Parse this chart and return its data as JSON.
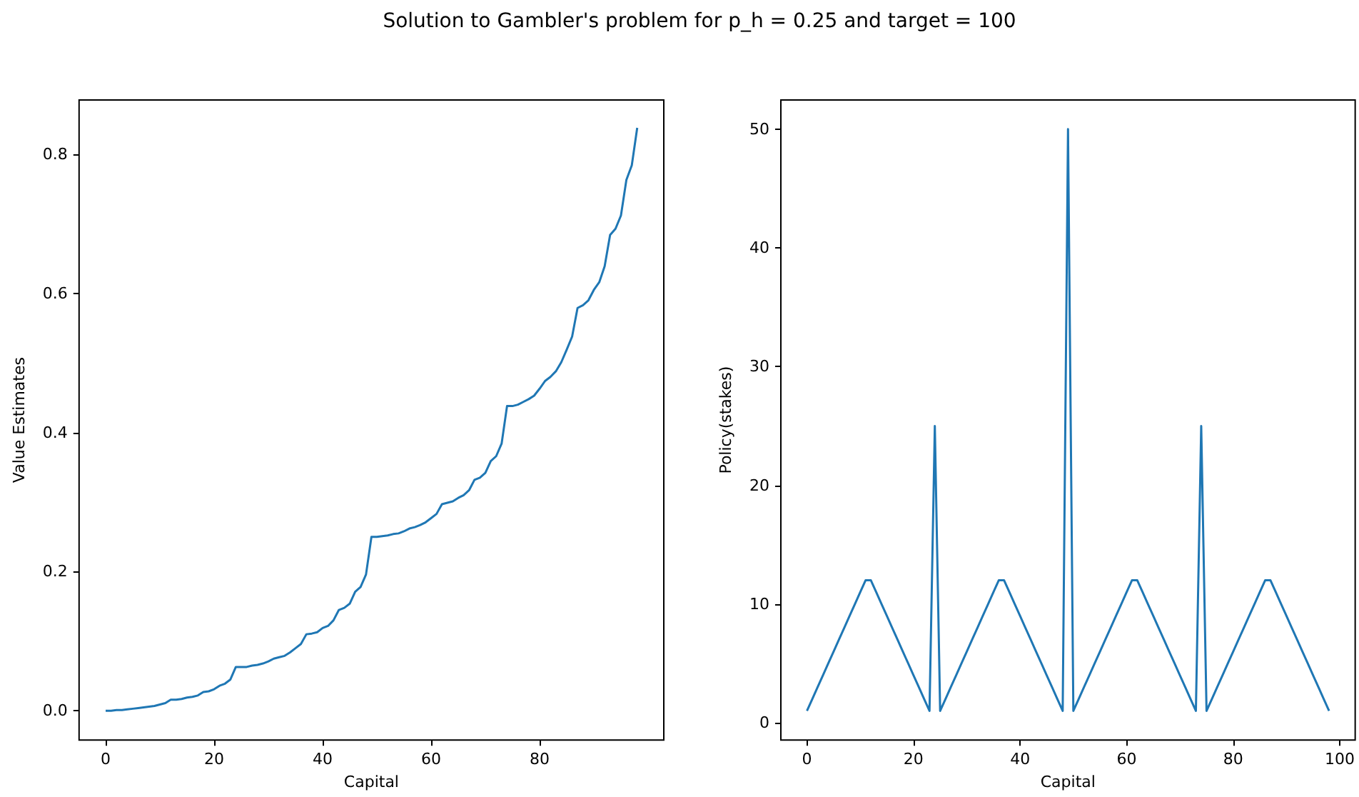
{
  "chart_data": [
    {
      "type": "line",
      "title": "Solution to Gambler's problem for p_h = 0.25 and target = 100",
      "xlabel": "Capital",
      "ylabel": "Value Estimates",
      "x": [
        0,
        1,
        2,
        3,
        4,
        5,
        6,
        7,
        8,
        9,
        10,
        11,
        12,
        13,
        14,
        15,
        16,
        17,
        18,
        19,
        20,
        21,
        22,
        23,
        24,
        25,
        26,
        27,
        28,
        29,
        30,
        31,
        32,
        33,
        34,
        35,
        36,
        37,
        38,
        39,
        40,
        41,
        42,
        43,
        44,
        45,
        46,
        47,
        48,
        49,
        50,
        51,
        52,
        53,
        54,
        55,
        56,
        57,
        58,
        59,
        60,
        61,
        62,
        63,
        64,
        65,
        66,
        67,
        68,
        69,
        70,
        71,
        72,
        73,
        74,
        75,
        76,
        77,
        78,
        79,
        80,
        81,
        82,
        83,
        84,
        85,
        86,
        87,
        88,
        89,
        90,
        91,
        92,
        93,
        94,
        95,
        96,
        97,
        98
      ],
      "series": [
        {
          "color": "#1f77b4",
          "values": [
            0.0,
            0.0,
            0.001,
            0.001,
            0.002,
            0.003,
            0.004,
            0.005,
            0.006,
            0.007,
            0.009,
            0.011,
            0.016,
            0.016,
            0.017,
            0.019,
            0.02,
            0.022,
            0.027,
            0.028,
            0.031,
            0.036,
            0.039,
            0.045,
            0.063,
            0.063,
            0.063,
            0.065,
            0.066,
            0.068,
            0.071,
            0.075,
            0.077,
            0.079,
            0.084,
            0.09,
            0.096,
            0.11,
            0.111,
            0.113,
            0.119,
            0.122,
            0.13,
            0.145,
            0.148,
            0.154,
            0.171,
            0.178,
            0.196,
            0.25,
            0.25,
            0.251,
            0.252,
            0.254,
            0.255,
            0.258,
            0.262,
            0.264,
            0.267,
            0.271,
            0.277,
            0.283,
            0.297,
            0.299,
            0.301,
            0.306,
            0.31,
            0.317,
            0.332,
            0.335,
            0.342,
            0.359,
            0.366,
            0.384,
            0.438,
            0.438,
            0.44,
            0.444,
            0.448,
            0.453,
            0.463,
            0.474,
            0.48,
            0.488,
            0.501,
            0.519,
            0.538,
            0.579,
            0.583,
            0.59,
            0.605,
            0.616,
            0.639,
            0.684,
            0.693,
            0.712,
            0.763,
            0.784,
            0.838
          ]
        }
      ],
      "xlim": [
        -4.9,
        102.9
      ],
      "xticks": [
        0,
        20,
        40,
        60,
        80
      ],
      "ylim": [
        -0.042,
        0.878
      ],
      "yticks": [
        {
          "value": 0,
          "label": "0.0"
        },
        {
          "value": 0.2,
          "label": "0.2"
        },
        {
          "value": 0.4,
          "label": "0.4"
        },
        {
          "value": 0.6,
          "label": "0.6"
        },
        {
          "value": 0.8,
          "label": "0.8"
        }
      ],
      "grid": false
    },
    {
      "type": "line",
      "xlabel": "Capital",
      "ylabel": "Policy(stakes)",
      "x": [
        0,
        1,
        2,
        3,
        4,
        5,
        6,
        7,
        8,
        9,
        10,
        11,
        12,
        13,
        14,
        15,
        16,
        17,
        18,
        19,
        20,
        21,
        22,
        23,
        24,
        25,
        26,
        27,
        28,
        29,
        30,
        31,
        32,
        33,
        34,
        35,
        36,
        37,
        38,
        39,
        40,
        41,
        42,
        43,
        44,
        45,
        46,
        47,
        48,
        49,
        50,
        51,
        52,
        53,
        54,
        55,
        56,
        57,
        58,
        59,
        60,
        61,
        62,
        63,
        64,
        65,
        66,
        67,
        68,
        69,
        70,
        71,
        72,
        73,
        74,
        75,
        76,
        77,
        78,
        79,
        80,
        81,
        82,
        83,
        84,
        85,
        86,
        87,
        88,
        89,
        90,
        91,
        92,
        93,
        94,
        95,
        96,
        97,
        98
      ],
      "series": [
        {
          "color": "#1f77b4",
          "values": [
            1,
            2,
            3,
            4,
            5,
            6,
            7,
            8,
            9,
            10,
            11,
            12,
            12,
            11,
            10,
            9,
            8,
            7,
            6,
            5,
            4,
            3,
            2,
            1,
            25,
            1,
            2,
            3,
            4,
            5,
            6,
            7,
            8,
            9,
            10,
            11,
            12,
            12,
            11,
            10,
            9,
            8,
            7,
            6,
            5,
            4,
            3,
            2,
            1,
            50,
            1,
            2,
            3,
            4,
            5,
            6,
            7,
            8,
            9,
            10,
            11,
            12,
            12,
            11,
            10,
            9,
            8,
            7,
            6,
            5,
            4,
            3,
            2,
            1,
            25,
            1,
            2,
            3,
            4,
            5,
            6,
            7,
            8,
            9,
            10,
            11,
            12,
            12,
            11,
            10,
            9,
            8,
            7,
            6,
            5,
            4,
            3,
            2,
            1
          ]
        }
      ],
      "xlim": [
        -4.9,
        102.9
      ],
      "xticks": [
        0,
        20,
        40,
        60,
        80,
        100
      ],
      "ylim": [
        -1.45,
        52.45
      ],
      "yticks": [
        0,
        10,
        20,
        30,
        40,
        50
      ],
      "grid": false
    }
  ]
}
